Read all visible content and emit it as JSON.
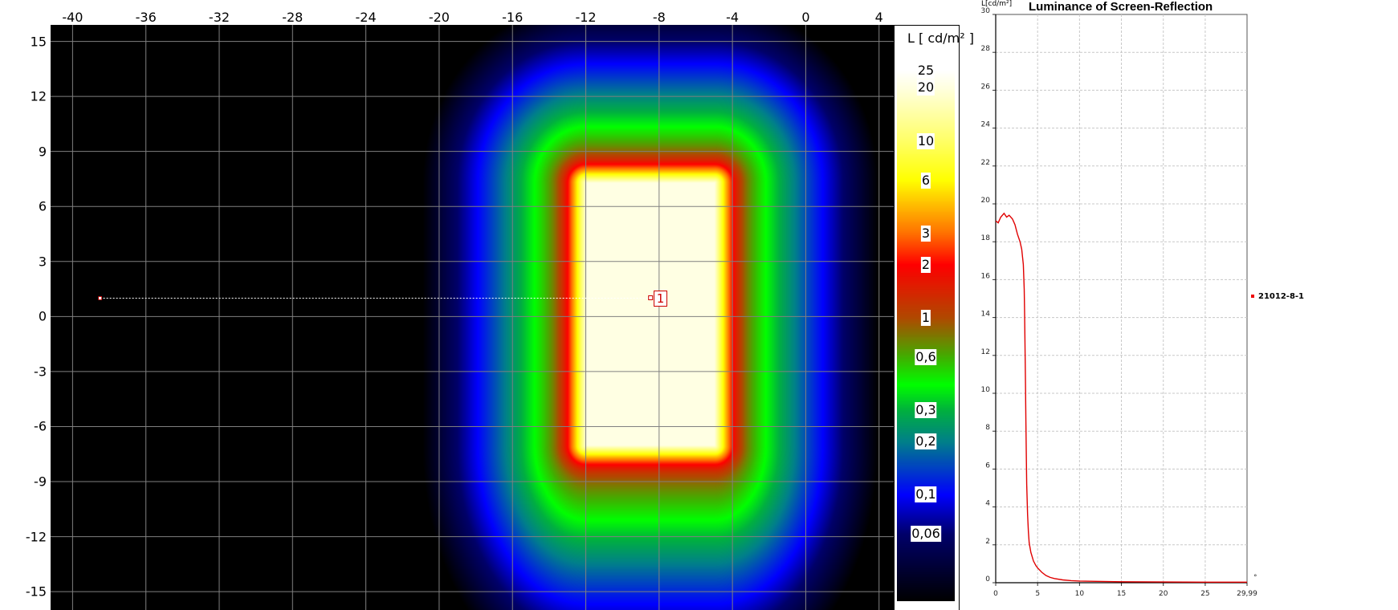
{
  "heatmap": {
    "type": "heatmap",
    "x_ticks": [
      "-40",
      "-36",
      "-32",
      "-28",
      "-24",
      "-20",
      "-16",
      "-12",
      "-8",
      "-4",
      "0",
      "4"
    ],
    "y_ticks": [
      "15",
      "12",
      "9",
      "6",
      "3",
      "0",
      "-3",
      "-6",
      "-9",
      "-12",
      "-15"
    ],
    "xlim": [
      -41.2,
      4.8
    ],
    "ylim": [
      -16,
      15.9
    ],
    "grid": true,
    "bright_region": {
      "x": [
        -12,
        -5
      ],
      "y": [
        -7,
        7.3
      ],
      "luminance": 19
    },
    "profile_line": {
      "start": [
        -38.5,
        1
      ],
      "end": [
        -8.4,
        1
      ],
      "marker_label": "1"
    },
    "colorbar": {
      "title": "L [ cd/m² ]",
      "scale": "log",
      "range": [
        0.025,
        25
      ],
      "labels": [
        {
          "text": "25",
          "value": 25
        },
        {
          "text": "20",
          "value": 20
        },
        {
          "text": "10",
          "value": 10
        },
        {
          "text": "6",
          "value": 6
        },
        {
          "text": "3",
          "value": 3
        },
        {
          "text": "2",
          "value": 2
        },
        {
          "text": "1",
          "value": 1
        },
        {
          "text": "0,6",
          "value": 0.6
        },
        {
          "text": "0,3",
          "value": 0.3
        },
        {
          "text": "0,2",
          "value": 0.2
        },
        {
          "text": "0,1",
          "value": 0.1
        },
        {
          "text": "0,06",
          "value": 0.06
        }
      ],
      "colors": [
        [
          0.025,
          "#000000"
        ],
        [
          0.06,
          "#00006a"
        ],
        [
          0.1,
          "#0000ff"
        ],
        [
          0.2,
          "#00808a"
        ],
        [
          0.3,
          "#00b040"
        ],
        [
          0.42,
          "#00ff00"
        ],
        [
          0.6,
          "#40b000"
        ],
        [
          1,
          "#b04a00"
        ],
        [
          2,
          "#ff0000"
        ],
        [
          3,
          "#ff7000"
        ],
        [
          6,
          "#ffff00"
        ],
        [
          10,
          "#ffff66"
        ],
        [
          20,
          "#ffffe0"
        ],
        [
          25,
          "#ffffff"
        ]
      ]
    }
  },
  "chart_data": {
    "type": "line",
    "title": "Luminance of Screen-Reflection",
    "ylabel": "L[cd/m²]",
    "xlabel_unit": "°",
    "xlim": [
      0,
      29.99
    ],
    "ylim": [
      0,
      30
    ],
    "x_ticks": [
      "0",
      "5",
      "10",
      "15",
      "20",
      "25",
      "29,99"
    ],
    "y_ticks": [
      "0",
      "2",
      "4",
      "6",
      "8",
      "10",
      "12",
      "14",
      "16",
      "18",
      "20",
      "22",
      "24",
      "26",
      "28",
      "30"
    ],
    "grid": true,
    "legend_position": "right",
    "series": [
      {
        "name": "21012-8-1",
        "color": "#e00000",
        "x": [
          0,
          0.3,
          0.6,
          1,
          1.3,
          1.6,
          2,
          2.3,
          2.6,
          2.9,
          3.1,
          3.3,
          3.4,
          3.45,
          3.5,
          3.55,
          3.6,
          3.65,
          3.7,
          3.8,
          3.9,
          4,
          4.2,
          4.5,
          4.8,
          5,
          5.5,
          6,
          6.5,
          7,
          8,
          9,
          10,
          12,
          15,
          20,
          25,
          29.99
        ],
        "y": [
          19.1,
          19.0,
          19.3,
          19.5,
          19.3,
          19.4,
          19.2,
          18.9,
          18.4,
          18.0,
          17.6,
          16.8,
          15.5,
          14.2,
          12.5,
          10.5,
          8.5,
          6.8,
          5.2,
          3.6,
          2.7,
          2.1,
          1.6,
          1.15,
          0.9,
          0.78,
          0.55,
          0.38,
          0.28,
          0.22,
          0.15,
          0.11,
          0.09,
          0.07,
          0.05,
          0.04,
          0.03,
          0.03
        ]
      }
    ]
  }
}
